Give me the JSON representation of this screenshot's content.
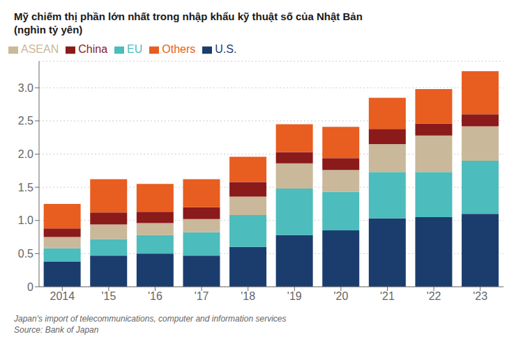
{
  "chart_data": {
    "type": "bar",
    "title": "Mỹ chiếm thị phần lớn nhất trong nhập khẩu kỹ thuật số của Nhật Bản",
    "subtitle": "(nghìn tỷ yên)",
    "annotations": [
      "Japan's import of telecommunications, computer and information services",
      "Source: Bank of Japan"
    ],
    "categories": [
      "2014",
      "'15",
      "'16",
      "'17",
      "'18",
      "'19",
      "'20",
      "'21",
      "'22",
      "'23"
    ],
    "series": [
      {
        "name": "U.S.",
        "color": "#1b3d6e",
        "values": [
          0.38,
          0.47,
          0.5,
          0.47,
          0.6,
          0.78,
          0.85,
          1.03,
          1.05,
          1.1
        ]
      },
      {
        "name": "EU",
        "color": "#4cbcbc",
        "values": [
          0.2,
          0.25,
          0.28,
          0.35,
          0.48,
          0.7,
          0.58,
          0.7,
          0.68,
          0.8
        ]
      },
      {
        "name": "ASEAN",
        "color": "#c9b89a",
        "values": [
          0.17,
          0.22,
          0.18,
          0.2,
          0.28,
          0.38,
          0.33,
          0.42,
          0.55,
          0.52
        ]
      },
      {
        "name": "China",
        "color": "#8b1a1a",
        "values": [
          0.13,
          0.18,
          0.17,
          0.18,
          0.22,
          0.17,
          0.18,
          0.23,
          0.18,
          0.18
        ]
      },
      {
        "name": "Others",
        "color": "#e85d20",
        "values": [
          0.37,
          0.5,
          0.42,
          0.42,
          0.38,
          0.42,
          0.47,
          0.47,
          0.52,
          0.65
        ]
      }
    ],
    "ylim": [
      0,
      3.4
    ],
    "yticks": [
      0,
      0.5,
      {
        "value": 1.0,
        "label": "1.0"
      },
      1.5,
      {
        "value": 2.0,
        "label": "2.0"
      },
      2.5,
      {
        "value": 3.0,
        "label": "3.0"
      }
    ],
    "stacked": true,
    "grid": true,
    "legend": "upper left"
  }
}
